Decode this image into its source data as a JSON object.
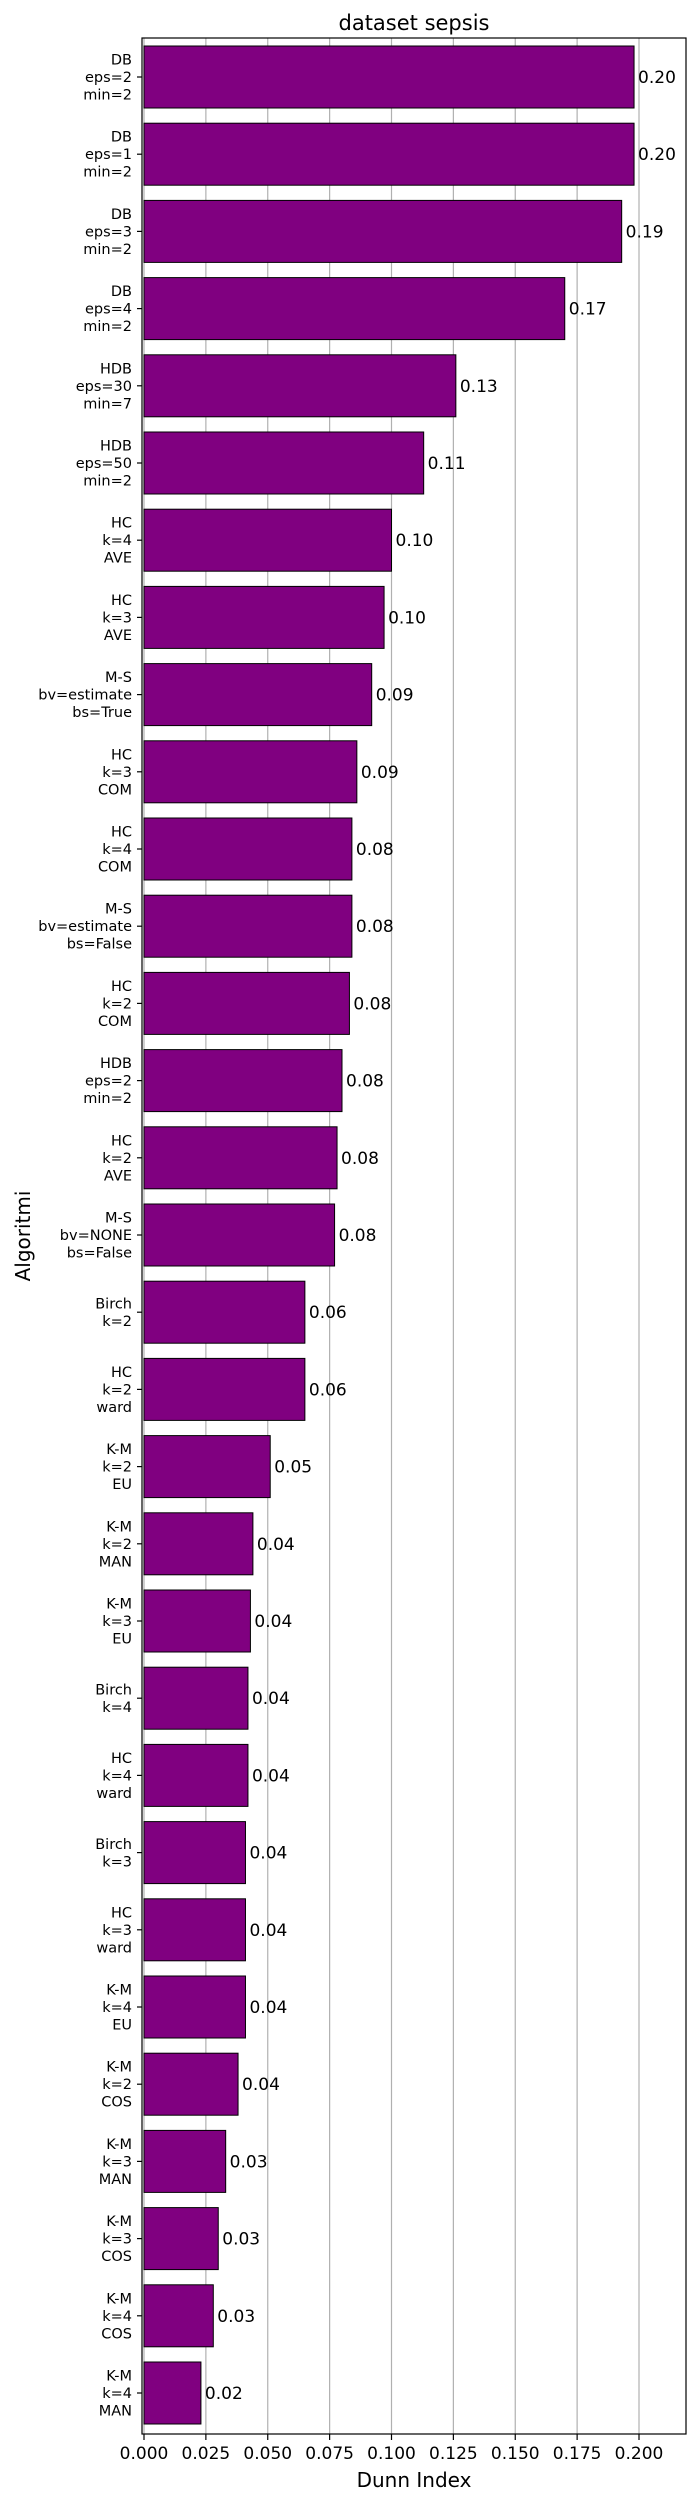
{
  "chart_data": {
    "type": "bar",
    "orientation": "horizontal",
    "title": "dataset sepsis",
    "xlabel": "Dunn Index",
    "ylabel": "Algoritmi",
    "xlim": [
      0,
      0.2
    ],
    "xticks": [
      "0.000",
      "0.025",
      "0.050",
      "0.075",
      "0.100",
      "0.125",
      "0.150",
      "0.175",
      "0.200"
    ],
    "grid": "vertical",
    "bar_color": "#800080",
    "categories": [
      [
        "DB",
        "eps=2",
        "min=2"
      ],
      [
        "DB",
        "eps=1",
        "min=2"
      ],
      [
        "DB",
        "eps=3",
        "min=2"
      ],
      [
        "DB",
        "eps=4",
        "min=2"
      ],
      [
        "HDB",
        "eps=30",
        "min=7"
      ],
      [
        "HDB",
        "eps=50",
        "min=2"
      ],
      [
        "HC",
        "k=4",
        "AVE"
      ],
      [
        "HC",
        "k=3",
        "AVE"
      ],
      [
        "M-S",
        "bv=estimate",
        "bs=True"
      ],
      [
        "HC",
        "k=3",
        "COM"
      ],
      [
        "HC",
        "k=4",
        "COM"
      ],
      [
        "M-S",
        "bv=estimate",
        "bs=False"
      ],
      [
        "HC",
        "k=2",
        "COM"
      ],
      [
        "HDB",
        "eps=2",
        "min=2"
      ],
      [
        "HC",
        "k=2",
        "AVE"
      ],
      [
        "M-S",
        "bv=NONE",
        "bs=False"
      ],
      [
        "Birch",
        "k=2"
      ],
      [
        "HC",
        "k=2",
        "ward"
      ],
      [
        "K-M",
        "k=2",
        "EU"
      ],
      [
        "K-M",
        "k=2",
        "MAN"
      ],
      [
        "K-M",
        "k=3",
        "EU"
      ],
      [
        "Birch",
        "k=4"
      ],
      [
        "HC",
        "k=4",
        "ward"
      ],
      [
        "Birch",
        "k=3"
      ],
      [
        "HC",
        "k=3",
        "ward"
      ],
      [
        "K-M",
        "k=4",
        "EU"
      ],
      [
        "K-M",
        "k=2",
        "COS"
      ],
      [
        "K-M",
        "k=3",
        "MAN"
      ],
      [
        "K-M",
        "k=3",
        "COS"
      ],
      [
        "K-M",
        "k=4",
        "COS"
      ],
      [
        "K-M",
        "k=4",
        "MAN"
      ]
    ],
    "values": [
      0.198,
      0.198,
      0.193,
      0.17,
      0.126,
      0.113,
      0.1,
      0.097,
      0.092,
      0.086,
      0.084,
      0.084,
      0.083,
      0.08,
      0.078,
      0.077,
      0.065,
      0.065,
      0.051,
      0.044,
      0.043,
      0.042,
      0.042,
      0.041,
      0.041,
      0.041,
      0.038,
      0.033,
      0.03,
      0.028,
      0.023
    ],
    "data_labels": [
      "0.20",
      "0.20",
      "0.19",
      "0.17",
      "0.13",
      "0.11",
      "0.10",
      "0.10",
      "0.09",
      "0.09",
      "0.08",
      "0.08",
      "0.08",
      "0.08",
      "0.08",
      "0.08",
      "0.06",
      "0.06",
      "0.05",
      "0.04",
      "0.04",
      "0.04",
      "0.04",
      "0.04",
      "0.04",
      "0.04",
      "0.04",
      "0.03",
      "0.03",
      "0.03",
      "0.02"
    ]
  }
}
